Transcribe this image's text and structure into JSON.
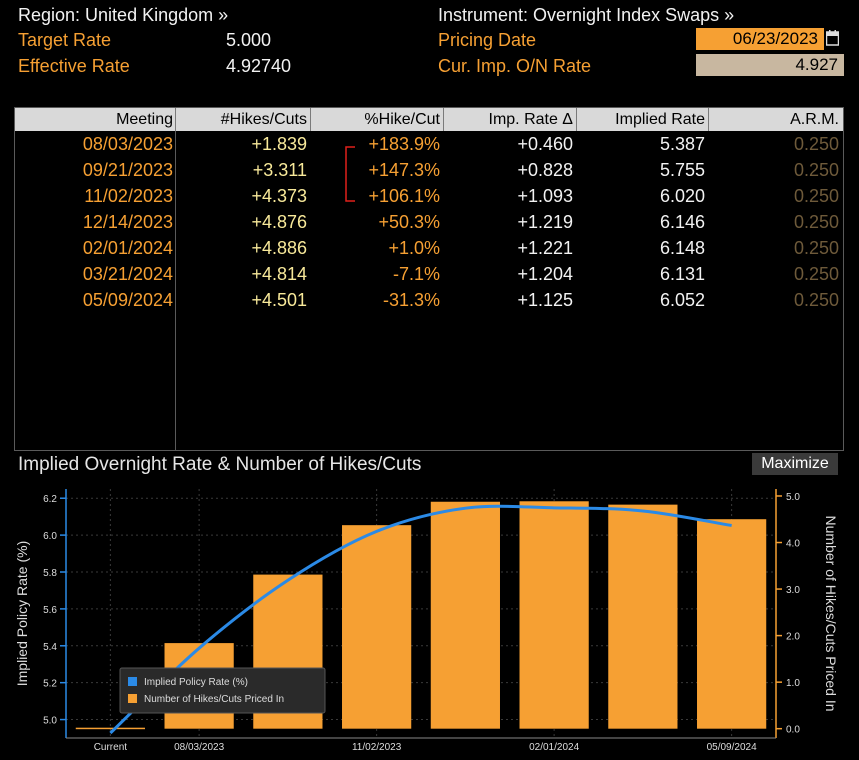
{
  "header": {
    "region_label": "Region: United Kingdom »",
    "instrument_label": "Instrument: Overnight Index Swaps »",
    "target_rate_label": "Target Rate",
    "target_rate_value": "5.000",
    "effective_rate_label": "Effective Rate",
    "effective_rate_value": "4.92740",
    "pricing_date_label": "Pricing Date",
    "pricing_date_value": "06/23/2023",
    "cur_imp_label": "Cur. Imp. O/N Rate",
    "cur_imp_value": "4.927"
  },
  "table": {
    "columns": [
      "Meeting",
      "#Hikes/Cuts",
      "%Hike/Cut",
      "Imp. Rate Δ",
      "Implied Rate",
      "A.R.M."
    ],
    "rows": [
      {
        "meeting": "08/03/2023",
        "hikes": "+1.839",
        "pct": "+183.9%",
        "delta": "+0.460",
        "implied": "5.387",
        "arm": "0.250"
      },
      {
        "meeting": "09/21/2023",
        "hikes": "+3.311",
        "pct": "+147.3%",
        "delta": "+0.828",
        "implied": "5.755",
        "arm": "0.250"
      },
      {
        "meeting": "11/02/2023",
        "hikes": "+4.373",
        "pct": "+106.1%",
        "delta": "+1.093",
        "implied": "6.020",
        "arm": "0.250"
      },
      {
        "meeting": "12/14/2023",
        "hikes": "+4.876",
        "pct": "+50.3%",
        "delta": "+1.219",
        "implied": "6.146",
        "arm": "0.250"
      },
      {
        "meeting": "02/01/2024",
        "hikes": "+4.886",
        "pct": "+1.0%",
        "delta": "+1.221",
        "implied": "6.148",
        "arm": "0.250"
      },
      {
        "meeting": "03/21/2024",
        "hikes": "+4.814",
        "pct": "-7.1%",
        "delta": "+1.204",
        "implied": "6.131",
        "arm": "0.250"
      },
      {
        "meeting": "05/09/2024",
        "hikes": "+4.501",
        "pct": "-31.3%",
        "delta": "+1.125",
        "implied": "6.052",
        "arm": "0.250"
      }
    ]
  },
  "chart_title": "Implied Overnight Rate & Number of Hikes/Cuts",
  "maximize_label": "Maximize",
  "colors": {
    "accent": "#f6a033",
    "line": "#2b8ae6",
    "bar": "#f6a033"
  },
  "chart_data": {
    "type": "bar",
    "categories": [
      "Current",
      "08/03/2023",
      "09/21/2023",
      "11/02/2023",
      "12/14/2023",
      "02/01/2024",
      "03/21/2024",
      "05/09/2024"
    ],
    "x_tick_labels": [
      "Current",
      "08/03/2023",
      "11/02/2023",
      "02/01/2024",
      "05/09/2024"
    ],
    "series": [
      {
        "name": "Implied Policy Rate (%)",
        "type": "line",
        "axis": "left",
        "values": [
          4.927,
          5.387,
          5.755,
          6.02,
          6.146,
          6.148,
          6.131,
          6.052
        ]
      },
      {
        "name": "Number of Hikes/Cuts Priced In",
        "type": "bar",
        "axis": "right",
        "values": [
          0,
          1.839,
          3.311,
          4.373,
          4.876,
          4.886,
          4.814,
          4.501
        ]
      }
    ],
    "ylabel": "Implied Policy Rate (%)",
    "y2label": "Number of Hikes/Cuts Priced In",
    "ylim": [
      4.9,
      6.25
    ],
    "y2lim": [
      -0.2,
      5.15
    ],
    "yticks": [
      "5.0",
      "5.2",
      "5.4",
      "5.6",
      "5.8",
      "6.0",
      "6.2"
    ],
    "y2ticks": [
      "0.0",
      "1.0",
      "2.0",
      "3.0",
      "4.0",
      "5.0"
    ],
    "legend_position": "bottom-left",
    "grid": true
  }
}
